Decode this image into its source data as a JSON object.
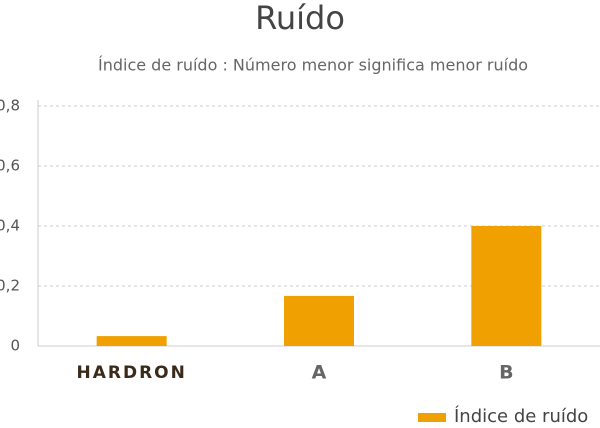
{
  "chart_data": {
    "type": "bar",
    "title": "Ruído",
    "subtitle": "Índice de ruído : Número menor significa menor ruído",
    "categories": [
      "HARDRON",
      "A",
      "B"
    ],
    "series": [
      {
        "name": "Índice de ruído",
        "color": "#f0a000",
        "values": [
          0.033,
          0.167,
          0.4
        ]
      }
    ],
    "ylim": [
      0,
      0.8
    ],
    "yticks": [
      0,
      {
        "value": 0.2,
        "label": "0,2"
      },
      {
        "value": 0.4,
        "label": "0,4"
      },
      {
        "value": 0.6,
        "label": "0,6"
      },
      {
        "value": 0.8,
        "label": "0,8"
      }
    ],
    "grid": true,
    "legend": "bottom-right"
  }
}
